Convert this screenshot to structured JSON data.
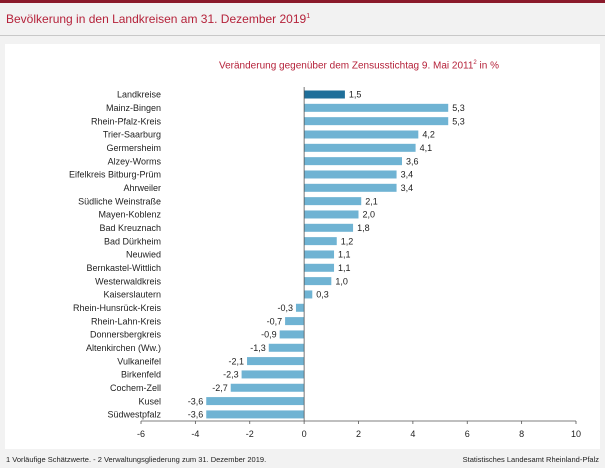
{
  "header": {
    "title": "Bevölkerung in den Landkreisen am 31. Dezember 2019",
    "title_sup": "1"
  },
  "chart_data": {
    "type": "bar",
    "orientation": "horizontal",
    "subtitle": "Veränderung gegenüber dem Zensusstichtag 9. Mai 2011",
    "subtitle_sup": "2",
    "subtitle_suffix": " in %",
    "categories": [
      "Landkreise",
      "Mainz-Bingen",
      "Rhein-Pfalz-Kreis",
      "Trier-Saarburg",
      "Germersheim",
      "Alzey-Worms",
      "Eifelkreis Bitburg-Prüm",
      "Ahrweiler",
      "Südliche Weinstraße",
      "Mayen-Koblenz",
      "Bad Kreuznach",
      "Bad Dürkheim",
      "Neuwied",
      "Bernkastel-Wittlich",
      "Westerwaldkreis",
      "Kaiserslautern",
      "Rhein-Hunsrück-Kreis",
      "Rhein-Lahn-Kreis",
      "Donnersbergkreis",
      "Altenkirchen (Ww.)",
      "Vulkaneifel",
      "Birkenfeld",
      "Cochem-Zell",
      "Kusel",
      "Südwestpfalz"
    ],
    "values": [
      1.5,
      5.3,
      5.3,
      4.2,
      4.1,
      3.6,
      3.4,
      3.4,
      2.1,
      2.0,
      1.8,
      1.2,
      1.1,
      1.1,
      1.0,
      0.3,
      -0.3,
      -0.7,
      -0.9,
      -1.3,
      -2.1,
      -2.3,
      -2.7,
      -3.6,
      -3.6
    ],
    "value_labels": [
      "1,5",
      "5,3",
      "5,3",
      "4,2",
      "4,1",
      "3,6",
      "3,4",
      "3,4",
      "2,1",
      "2,0",
      "1,8",
      "1,2",
      "1,1",
      "1,1",
      "1,0",
      "0,3",
      "-0,3",
      "-0,7",
      "-0,9",
      "-1,3",
      "-2,1",
      "-2,3",
      "-2,7",
      "-3,6",
      "-3,6"
    ],
    "highlight_index": 0,
    "xlim": [
      -6,
      10
    ],
    "xticks": [
      -6,
      -4,
      -2,
      0,
      2,
      4,
      6,
      8,
      10
    ],
    "grid": false,
    "colors": {
      "bar": "#6fb3d3",
      "highlight": "#1f6f9a",
      "title": "#b5223a"
    }
  },
  "footer": {
    "footnote": "1 Vorläufige Schätzwerte. - 2 Verwaltungsgliederung zum 31. Dezember 2019.",
    "source": "Statistisches Landesamt Rheinland-Pfalz"
  }
}
